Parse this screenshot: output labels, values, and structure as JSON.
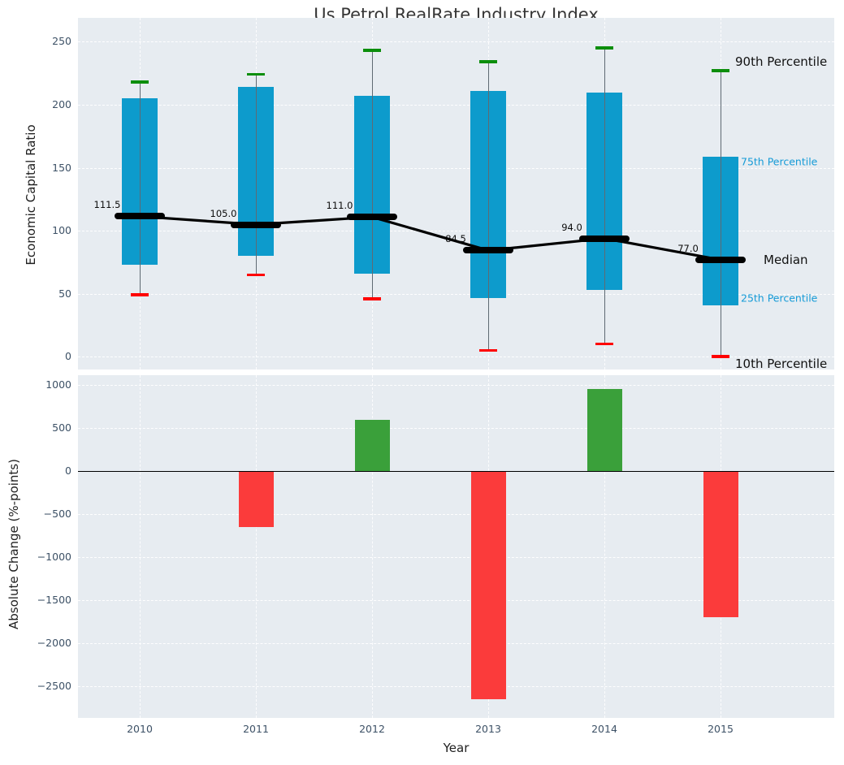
{
  "title": "Us Petrol RealRate Industry Index",
  "colors": {
    "plot_bg": "#e7ecf1",
    "bar_blue": "#0d9bcc",
    "cap_green": "#0c8e0c",
    "cap_red": "#ff0000",
    "median_black": "#000000",
    "positive_green": "#3aa03a",
    "negative_red": "#fb3b3b",
    "annotation_blue": "#169bd7",
    "tick_label": "#3d5166"
  },
  "chart_data": [
    {
      "type": "line",
      "title": "Us Petrol RealRate Industry Index",
      "ylabel": "Economic Capital Ratio",
      "x": [
        "2010",
        "2011",
        "2012",
        "2013",
        "2014",
        "2015"
      ],
      "series": [
        {
          "name": "90th Percentile",
          "values": [
            218,
            224,
            243,
            234,
            245,
            227
          ]
        },
        {
          "name": "75th Percentile",
          "values": [
            205,
            214,
            207,
            211,
            210,
            159
          ]
        },
        {
          "name": "Median",
          "values": [
            111.5,
            105.0,
            111.0,
            84.5,
            94.0,
            77.0
          ]
        },
        {
          "name": "25th Percentile",
          "values": [
            73,
            80,
            66,
            47,
            53,
            41
          ]
        },
        {
          "name": "10th Percentile",
          "values": [
            49,
            65,
            46,
            5,
            10,
            0
          ]
        }
      ],
      "median_labels": [
        "111.5",
        "105.0",
        "111.0",
        "84.5",
        "94.0",
        "77.0"
      ],
      "annotations": [
        "90th Percentile",
        "75th Percentile",
        "Median",
        "25th Percentile",
        "10th Percentile"
      ],
      "yticks": [
        0,
        50,
        100,
        150,
        200,
        250
      ],
      "ytick_labels": [
        "0",
        "50",
        "100",
        "150",
        "200",
        "250"
      ],
      "ylim": [
        -10,
        269
      ],
      "grid": true,
      "legend_position": "right-annotations"
    },
    {
      "type": "bar",
      "ylabel": "Absolute Change (%-points)",
      "xlabel": "Year",
      "categories": [
        "2010",
        "2011",
        "2012",
        "2013",
        "2014",
        "2015"
      ],
      "values": [
        null,
        -650,
        600,
        -2650,
        950,
        -1700
      ],
      "yticks": [
        1000,
        500,
        0,
        -500,
        -1000,
        -1500,
        -2000,
        -2500
      ],
      "ytick_labels": [
        "1000",
        "500",
        "0",
        "−500",
        "−1000",
        "−1500",
        "−2000",
        "−2500"
      ],
      "ylim": [
        -2870,
        1115
      ],
      "grid": true
    }
  ]
}
